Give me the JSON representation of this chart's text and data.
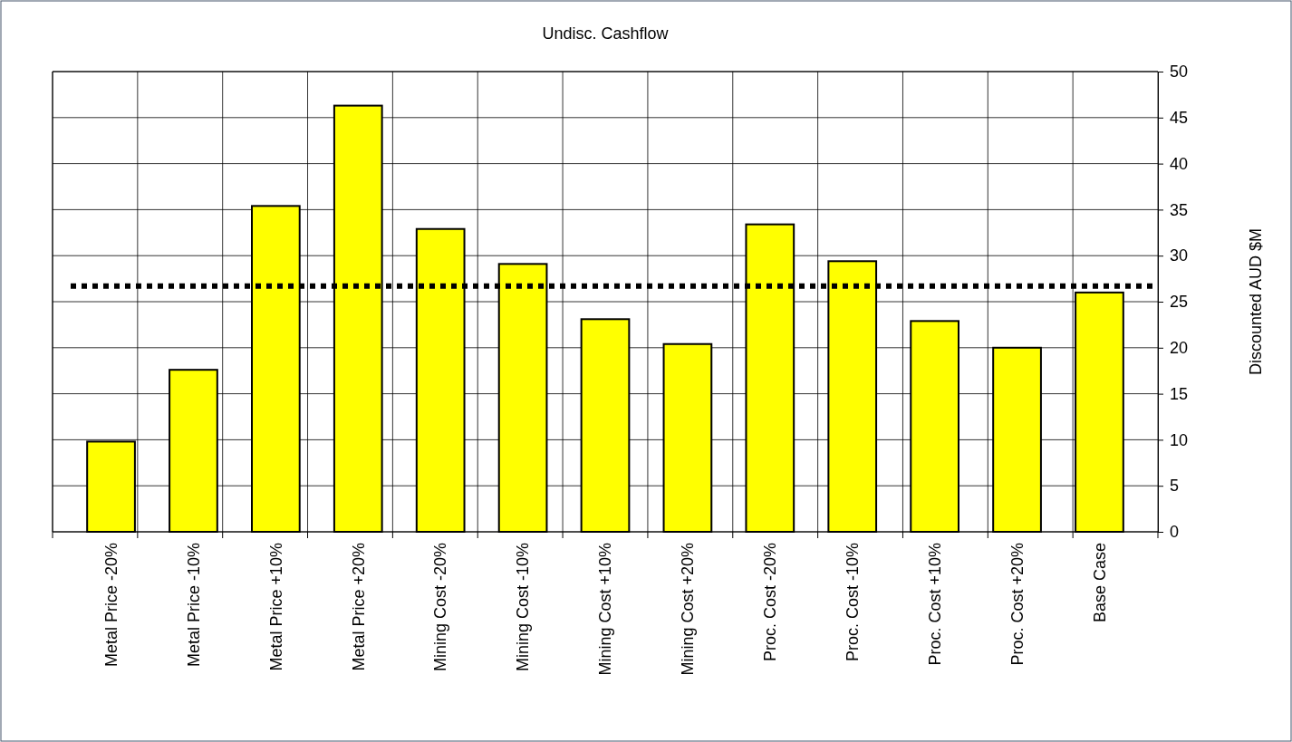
{
  "chart_data": {
    "type": "bar",
    "title": "Undisc. Cashflow",
    "ylabel": "Discounted AUD $M",
    "categories": [
      "Metal Price -20%",
      "Metal Price -10%",
      "Metal Price +10%",
      "Metal Price +20%",
      "Mining Cost -20%",
      "Mining Cost -10%",
      "Mining Cost +10%",
      "Mining Cost +20%",
      "Proc. Cost -20%",
      "Proc. Cost -10%",
      "Proc. Cost +10%",
      "Proc. Cost +20%",
      "Base Case"
    ],
    "values": [
      9.8,
      17.6,
      35.4,
      46.3,
      32.9,
      29.1,
      23.1,
      20.4,
      33.4,
      29.4,
      22.9,
      20.0,
      26.0
    ],
    "color": "#ffff00",
    "ylim": [
      0,
      50
    ],
    "yticks": [
      0,
      5,
      10,
      15,
      20,
      25,
      30,
      35,
      40,
      45,
      50
    ],
    "grid": true,
    "ref_lines": [
      {
        "axis": "y",
        "value": 26.7,
        "color": "#000000",
        "line_style": "dotted"
      }
    ]
  }
}
